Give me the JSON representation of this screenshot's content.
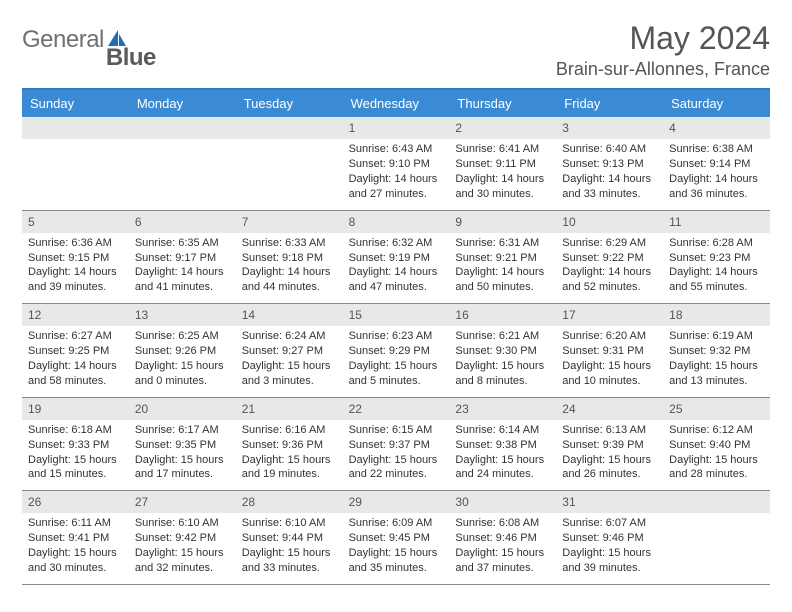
{
  "header": {
    "logo_prefix": "General",
    "logo_suffix": "Blue",
    "month_title": "May 2024",
    "location": "Brain-sur-Allonnes, France"
  },
  "colors": {
    "header_bg": "#3b8bd4",
    "header_border": "#2c7ac0",
    "daynum_bg": "#e8e8e8",
    "cell_border": "#888888",
    "logo_accent": "#1f6fb5",
    "text": "#333333"
  },
  "day_headers": [
    "Sunday",
    "Monday",
    "Tuesday",
    "Wednesday",
    "Thursday",
    "Friday",
    "Saturday"
  ],
  "leading_blanks": 3,
  "days": [
    {
      "n": "1",
      "sunrise": "6:43 AM",
      "sunset": "9:10 PM",
      "daylight": "14 hours and 27 minutes."
    },
    {
      "n": "2",
      "sunrise": "6:41 AM",
      "sunset": "9:11 PM",
      "daylight": "14 hours and 30 minutes."
    },
    {
      "n": "3",
      "sunrise": "6:40 AM",
      "sunset": "9:13 PM",
      "daylight": "14 hours and 33 minutes."
    },
    {
      "n": "4",
      "sunrise": "6:38 AM",
      "sunset": "9:14 PM",
      "daylight": "14 hours and 36 minutes."
    },
    {
      "n": "5",
      "sunrise": "6:36 AM",
      "sunset": "9:15 PM",
      "daylight": "14 hours and 39 minutes."
    },
    {
      "n": "6",
      "sunrise": "6:35 AM",
      "sunset": "9:17 PM",
      "daylight": "14 hours and 41 minutes."
    },
    {
      "n": "7",
      "sunrise": "6:33 AM",
      "sunset": "9:18 PM",
      "daylight": "14 hours and 44 minutes."
    },
    {
      "n": "8",
      "sunrise": "6:32 AM",
      "sunset": "9:19 PM",
      "daylight": "14 hours and 47 minutes."
    },
    {
      "n": "9",
      "sunrise": "6:31 AM",
      "sunset": "9:21 PM",
      "daylight": "14 hours and 50 minutes."
    },
    {
      "n": "10",
      "sunrise": "6:29 AM",
      "sunset": "9:22 PM",
      "daylight": "14 hours and 52 minutes."
    },
    {
      "n": "11",
      "sunrise": "6:28 AM",
      "sunset": "9:23 PM",
      "daylight": "14 hours and 55 minutes."
    },
    {
      "n": "12",
      "sunrise": "6:27 AM",
      "sunset": "9:25 PM",
      "daylight": "14 hours and 58 minutes."
    },
    {
      "n": "13",
      "sunrise": "6:25 AM",
      "sunset": "9:26 PM",
      "daylight": "15 hours and 0 minutes."
    },
    {
      "n": "14",
      "sunrise": "6:24 AM",
      "sunset": "9:27 PM",
      "daylight": "15 hours and 3 minutes."
    },
    {
      "n": "15",
      "sunrise": "6:23 AM",
      "sunset": "9:29 PM",
      "daylight": "15 hours and 5 minutes."
    },
    {
      "n": "16",
      "sunrise": "6:21 AM",
      "sunset": "9:30 PM",
      "daylight": "15 hours and 8 minutes."
    },
    {
      "n": "17",
      "sunrise": "6:20 AM",
      "sunset": "9:31 PM",
      "daylight": "15 hours and 10 minutes."
    },
    {
      "n": "18",
      "sunrise": "6:19 AM",
      "sunset": "9:32 PM",
      "daylight": "15 hours and 13 minutes."
    },
    {
      "n": "19",
      "sunrise": "6:18 AM",
      "sunset": "9:33 PM",
      "daylight": "15 hours and 15 minutes."
    },
    {
      "n": "20",
      "sunrise": "6:17 AM",
      "sunset": "9:35 PM",
      "daylight": "15 hours and 17 minutes."
    },
    {
      "n": "21",
      "sunrise": "6:16 AM",
      "sunset": "9:36 PM",
      "daylight": "15 hours and 19 minutes."
    },
    {
      "n": "22",
      "sunrise": "6:15 AM",
      "sunset": "9:37 PM",
      "daylight": "15 hours and 22 minutes."
    },
    {
      "n": "23",
      "sunrise": "6:14 AM",
      "sunset": "9:38 PM",
      "daylight": "15 hours and 24 minutes."
    },
    {
      "n": "24",
      "sunrise": "6:13 AM",
      "sunset": "9:39 PM",
      "daylight": "15 hours and 26 minutes."
    },
    {
      "n": "25",
      "sunrise": "6:12 AM",
      "sunset": "9:40 PM",
      "daylight": "15 hours and 28 minutes."
    },
    {
      "n": "26",
      "sunrise": "6:11 AM",
      "sunset": "9:41 PM",
      "daylight": "15 hours and 30 minutes."
    },
    {
      "n": "27",
      "sunrise": "6:10 AM",
      "sunset": "9:42 PM",
      "daylight": "15 hours and 32 minutes."
    },
    {
      "n": "28",
      "sunrise": "6:10 AM",
      "sunset": "9:44 PM",
      "daylight": "15 hours and 33 minutes."
    },
    {
      "n": "29",
      "sunrise": "6:09 AM",
      "sunset": "9:45 PM",
      "daylight": "15 hours and 35 minutes."
    },
    {
      "n": "30",
      "sunrise": "6:08 AM",
      "sunset": "9:46 PM",
      "daylight": "15 hours and 37 minutes."
    },
    {
      "n": "31",
      "sunrise": "6:07 AM",
      "sunset": "9:46 PM",
      "daylight": "15 hours and 39 minutes."
    }
  ],
  "labels": {
    "sunrise_prefix": "Sunrise: ",
    "sunset_prefix": "Sunset: ",
    "daylight_prefix": "Daylight: "
  }
}
